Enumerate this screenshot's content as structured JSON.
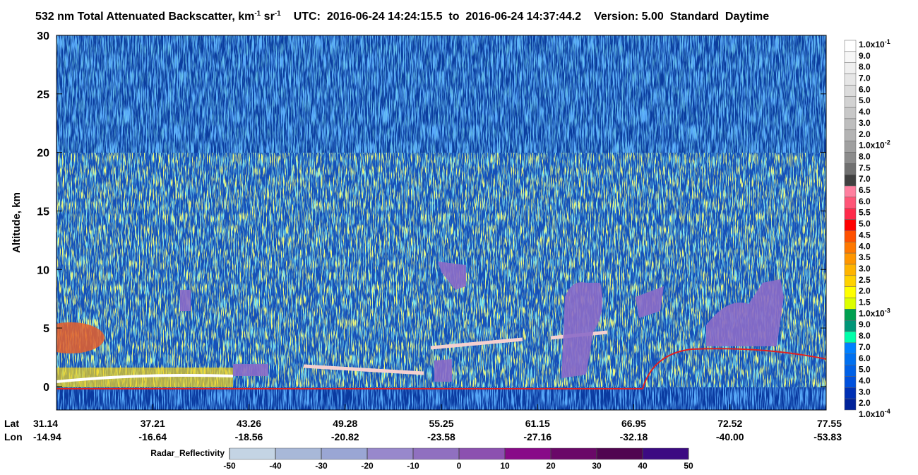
{
  "chart_data": {
    "type": "curtain",
    "title": {
      "main": "532 nm Total Attenuated Backscatter, km",
      "exp": "-1",
      "unit2": " sr",
      "utc": "UTC:  2016-06-24 14:24:15.5  to  2016-06-24 14:37:44.2",
      "version": "Version: 5.00  Standard  Daytime"
    },
    "ylabel": "Altitude, km",
    "ylim": [
      -2,
      30
    ],
    "yticks": [
      0,
      5,
      10,
      15,
      20,
      25,
      30
    ],
    "x_axis": {
      "lat_label": "Lat",
      "lon_label": "Lon",
      "lat": [
        "31.14",
        "37.21",
        "43.26",
        "49.28",
        "55.25",
        "61.15",
        "66.95",
        "72.52",
        "77.55"
      ],
      "lon": [
        "-14.94",
        "-16.64",
        "-18.56",
        "-20.82",
        "-23.58",
        "-27.16",
        "-32.18",
        "-40.00",
        "-53.83"
      ]
    },
    "colorbar": {
      "labels": [
        {
          "text": "1.0x10",
          "sup": "-1"
        },
        "9.0",
        "8.0",
        "7.0",
        "6.0",
        "5.0",
        "4.0",
        "3.0",
        "2.0",
        {
          "text": "1.0x10",
          "sup": "-2"
        },
        "8.0",
        "7.5",
        "7.0",
        "6.5",
        "6.0",
        "5.5",
        "5.0",
        "4.5",
        "4.0",
        "3.5",
        "3.0",
        "2.5",
        "2.0",
        "1.5",
        {
          "text": "1.0x10",
          "sup": "-3"
        },
        "9.0",
        "8.0",
        "7.0",
        "6.0",
        "5.0",
        "4.0",
        "3.0",
        "2.0",
        {
          "text": "1.0x10",
          "sup": "-4"
        }
      ],
      "colors": [
        "#ffffff",
        "#f7f7f7",
        "#efefef",
        "#e6e6e6",
        "#dcdcdc",
        "#d2d2d2",
        "#c8c8c8",
        "#bebebe",
        "#b4b4b4",
        "#a0a0a0",
        "#8c8c8c",
        "#707070",
        "#404040",
        "#ff7f9f",
        "#ff5577",
        "#ff2a4a",
        "#ff0000",
        "#ff5000",
        "#ff7800",
        "#ff9600",
        "#ffb400",
        "#ffd200",
        "#ffff00",
        "#dcff00",
        "#00a050",
        "#009678",
        "#00ffaa",
        "#0080ff",
        "#0070f0",
        "#0060e6",
        "#0050dc",
        "#0030b4",
        "#00229a"
      ]
    },
    "radar_colorbar": {
      "label": "Radar_Reflectivity",
      "ticks": [
        -50,
        -40,
        -30,
        -20,
        -10,
        0,
        10,
        20,
        30,
        40,
        50
      ],
      "colors": [
        "#c4d4e4",
        "#a8b8d8",
        "#9aa6d4",
        "#9888cc",
        "#9070c0",
        "#8c50b0",
        "#880a88",
        "#6a0868",
        "#500550",
        "#3c0a82"
      ]
    }
  }
}
